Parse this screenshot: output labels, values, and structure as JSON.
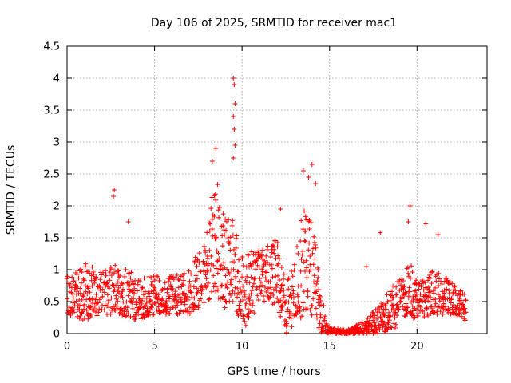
{
  "chart_data": {
    "type": "scatter",
    "title": "Day 106 of 2025, SRMTID for receiver mac1",
    "xlabel": "GPS time / hours",
    "ylabel": "SRMTID / TECUs",
    "xlim": [
      0,
      24
    ],
    "ylim": [
      0,
      4.5
    ],
    "grid": true,
    "x_ticks": [
      0,
      5,
      10,
      15,
      20
    ],
    "y_ticks": [
      0,
      0.5,
      1,
      1.5,
      2,
      2.5,
      3,
      3.5,
      4,
      4.5
    ],
    "x_tick_labels": [
      "0",
      "5",
      "10",
      "15",
      "20"
    ],
    "y_tick_labels": [
      "0",
      "0.5",
      "1",
      "1.5",
      "2",
      "2.5",
      "3",
      "3.5",
      "4",
      "4.5"
    ],
    "marker": "+",
    "color": "#ff0000",
    "series": [
      {
        "name": "SRMTID",
        "note": "Dense scatter of points every few minutes; envelope below gives representative band (low, high) per hour window plus notable peaks.",
        "profile": [
          {
            "x": 0.0,
            "low": 0.3,
            "high": 0.9
          },
          {
            "x": 1.0,
            "low": 0.2,
            "high": 1.1
          },
          {
            "x": 2.0,
            "low": 0.3,
            "high": 1.0
          },
          {
            "x": 3.0,
            "low": 0.3,
            "high": 1.1
          },
          {
            "x": 4.0,
            "low": 0.2,
            "high": 0.9
          },
          {
            "x": 5.0,
            "low": 0.3,
            "high": 0.9
          },
          {
            "x": 6.0,
            "low": 0.3,
            "high": 0.9
          },
          {
            "x": 7.0,
            "low": 0.3,
            "high": 1.0
          },
          {
            "x": 8.0,
            "low": 0.5,
            "high": 1.6
          },
          {
            "x": 8.5,
            "low": 0.6,
            "high": 2.6
          },
          {
            "x": 9.0,
            "low": 0.4,
            "high": 1.8
          },
          {
            "x": 9.5,
            "low": 0.5,
            "high": 1.8
          },
          {
            "x": 10.0,
            "low": 0.05,
            "high": 1.2
          },
          {
            "x": 10.5,
            "low": 0.2,
            "high": 1.3
          },
          {
            "x": 11.0,
            "low": 0.5,
            "high": 1.3
          },
          {
            "x": 11.5,
            "low": 0.5,
            "high": 1.4
          },
          {
            "x": 12.0,
            "low": 0.4,
            "high": 1.5
          },
          {
            "x": 12.5,
            "low": 0.0,
            "high": 0.8
          },
          {
            "x": 13.0,
            "low": 0.1,
            "high": 1.2
          },
          {
            "x": 13.5,
            "low": 0.3,
            "high": 2.0
          },
          {
            "x": 14.0,
            "low": 0.2,
            "high": 1.8
          },
          {
            "x": 14.5,
            "low": 0.0,
            "high": 0.8
          },
          {
            "x": 15.0,
            "low": 0.0,
            "high": 0.1
          },
          {
            "x": 16.0,
            "low": 0.0,
            "high": 0.05
          },
          {
            "x": 17.0,
            "low": 0.0,
            "high": 0.2
          },
          {
            "x": 18.0,
            "low": 0.0,
            "high": 0.5
          },
          {
            "x": 19.0,
            "low": 0.1,
            "high": 0.9
          },
          {
            "x": 19.5,
            "low": 0.3,
            "high": 1.2
          },
          {
            "x": 20.0,
            "low": 0.2,
            "high": 0.8
          },
          {
            "x": 21.0,
            "low": 0.3,
            "high": 1.0
          },
          {
            "x": 22.0,
            "low": 0.3,
            "high": 0.8
          },
          {
            "x": 22.8,
            "low": 0.2,
            "high": 0.6
          }
        ],
        "peaks": [
          {
            "x": 2.7,
            "y": 2.25
          },
          {
            "x": 2.65,
            "y": 2.15
          },
          {
            "x": 3.5,
            "y": 1.75
          },
          {
            "x": 8.5,
            "y": 2.9
          },
          {
            "x": 8.3,
            "y": 2.7
          },
          {
            "x": 9.5,
            "y": 4.0
          },
          {
            "x": 9.55,
            "y": 3.9
          },
          {
            "x": 9.6,
            "y": 3.6
          },
          {
            "x": 9.5,
            "y": 3.4
          },
          {
            "x": 9.55,
            "y": 3.2
          },
          {
            "x": 9.6,
            "y": 2.95
          },
          {
            "x": 9.5,
            "y": 2.75
          },
          {
            "x": 13.5,
            "y": 2.55
          },
          {
            "x": 14.0,
            "y": 2.65
          },
          {
            "x": 13.8,
            "y": 2.45
          },
          {
            "x": 14.2,
            "y": 2.35
          },
          {
            "x": 12.2,
            "y": 1.95
          },
          {
            "x": 19.6,
            "y": 2.0
          },
          {
            "x": 19.5,
            "y": 1.75
          },
          {
            "x": 20.5,
            "y": 1.72
          },
          {
            "x": 21.2,
            "y": 1.55
          },
          {
            "x": 17.9,
            "y": 1.58
          },
          {
            "x": 17.1,
            "y": 1.05
          }
        ]
      }
    ]
  }
}
